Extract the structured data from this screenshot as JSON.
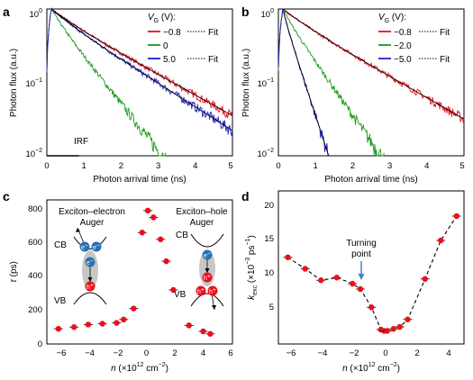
{
  "panels": {
    "a": {
      "label": "a",
      "xlabel": "Photon arrival time (ns)",
      "ylabel": "Photon flux (a.u.)",
      "xticks": [
        "0",
        "1",
        "2",
        "3",
        "4",
        "5"
      ],
      "yticks": [
        "10",
        "10",
        "10"
      ],
      "yexp": [
        "0",
        "−1",
        "−2"
      ],
      "legend_title": "V",
      "legend_sub": "G",
      "legend_unit": " (V):",
      "legend": [
        {
          "label": "−0.8",
          "fit": "Fit",
          "color": "#e8111a"
        },
        {
          "label": "0",
          "fit": "",
          "color": "#1a9a1a"
        },
        {
          "label": "5.0",
          "fit": "Fit",
          "color": "#1f23c4"
        }
      ],
      "irf_label": "IRF"
    },
    "b": {
      "label": "b",
      "xlabel": "Photon arrival time (ns)",
      "ylabel": "Photon flux (a.u.)",
      "xticks": [
        "0",
        "1",
        "2",
        "3",
        "4",
        "5"
      ],
      "yticks": [
        "10",
        "10",
        "10"
      ],
      "yexp": [
        "0",
        "−1",
        "−2"
      ],
      "legend_title": "V",
      "legend_sub": "G",
      "legend_unit": " (V):",
      "legend": [
        {
          "label": "−0.8",
          "fit": "Fit",
          "color": "#e8111a"
        },
        {
          "label": "−2.0",
          "fit": "",
          "color": "#1a9a1a"
        },
        {
          "label": "−5.0",
          "fit": "Fit",
          "color": "#1f23c4"
        }
      ]
    },
    "c": {
      "label": "c",
      "xlabel_pre": "n",
      "xlabel_post": " (×10",
      "xlabel_exp": "12",
      "xlabel_unit": " cm",
      "xlabel_unit_exp": "−2",
      "xlabel_close": ")",
      "ylabel_sym": "τ",
      "ylabel_unit": " (ps)",
      "xticks": [
        "−6",
        "−4",
        "−2",
        "0",
        "2",
        "4",
        "6"
      ],
      "yticks": [
        "0",
        "200",
        "400",
        "600",
        "800"
      ],
      "left_title": [
        "Exciton–electron",
        "Auger"
      ],
      "right_title": [
        "Exciton–hole",
        "Auger"
      ],
      "cb": "CB",
      "vb": "VB",
      "e_label": "e",
      "h_label": "h",
      "minus": "−",
      "plus": "+"
    },
    "d": {
      "label": "d",
      "xlabel_pre": "n",
      "xlabel_post": " (×10",
      "xlabel_exp": "12",
      "xlabel_unit": " cm",
      "xlabel_unit_exp": "−2",
      "xlabel_close": ")",
      "ylabel_sym": "k",
      "ylabel_sub": "exc",
      "ylabel_post": " (×10",
      "ylabel_exp": "−3",
      "ylabel_unit": " ps",
      "ylabel_unit_exp": "−1",
      "ylabel_close": ")",
      "xticks": [
        "−6",
        "−4",
        "−2",
        "0",
        "2",
        "4"
      ],
      "yticks": [
        "5",
        "10",
        "15",
        "20"
      ],
      "annotation": [
        "Turning",
        "point"
      ]
    }
  },
  "chart_data": [
    {
      "panel": "a",
      "type": "line",
      "x_range": [
        0,
        5
      ],
      "y_scale": "log",
      "y_range": [
        0.01,
        1
      ],
      "series": [
        {
          "name": "−0.8",
          "decay_ns": 1.55,
          "fit": true
        },
        {
          "name": "0",
          "decay_ns": 0.68,
          "fit": false
        },
        {
          "name": "5.0",
          "decay_ns": 1.35,
          "fit": true
        },
        {
          "name": "IRF",
          "decay_ns": 0.16,
          "fit": false
        }
      ]
    },
    {
      "panel": "b",
      "type": "line",
      "x_range": [
        0,
        5
      ],
      "y_scale": "log",
      "y_range": [
        0.01,
        1
      ],
      "series": [
        {
          "name": "−0.8",
          "decay_ns": 1.5,
          "fit": true
        },
        {
          "name": "−2.0",
          "decay_ns": 0.6,
          "fit": false
        },
        {
          "name": "−5.0",
          "decay_ns": 0.28,
          "fit": true
        }
      ]
    },
    {
      "panel": "c",
      "type": "scatter",
      "x_range": [
        -7,
        6
      ],
      "y_range": [
        0,
        850
      ],
      "x": [
        -6.2,
        -5.1,
        -4.1,
        -3.1,
        -2.1,
        -1.6,
        -0.9,
        -0.3,
        0.1,
        0.5,
        1.0,
        1.4,
        1.9,
        3.0,
        4.0,
        4.5
      ],
      "y": [
        90,
        100,
        115,
        120,
        125,
        145,
        210,
        660,
        790,
        750,
        620,
        490,
        320,
        110,
        75,
        60
      ]
    },
    {
      "panel": "d",
      "type": "scatter",
      "x_range": [
        -7,
        5
      ],
      "y_range": [
        0,
        23
      ],
      "x": [
        -6.2,
        -5.1,
        -4.1,
        -3.1,
        -2.1,
        -1.6,
        -0.9,
        -0.3,
        -0.1,
        0.1,
        0.5,
        0.9,
        1.4,
        2.5,
        3.5,
        4.5
      ],
      "y": [
        12.3,
        10.6,
        8.9,
        9.3,
        8.4,
        7.6,
        4.9,
        1.6,
        1.4,
        1.4,
        1.7,
        2.0,
        3.1,
        9.1,
        14.8,
        18.4
      ]
    }
  ]
}
